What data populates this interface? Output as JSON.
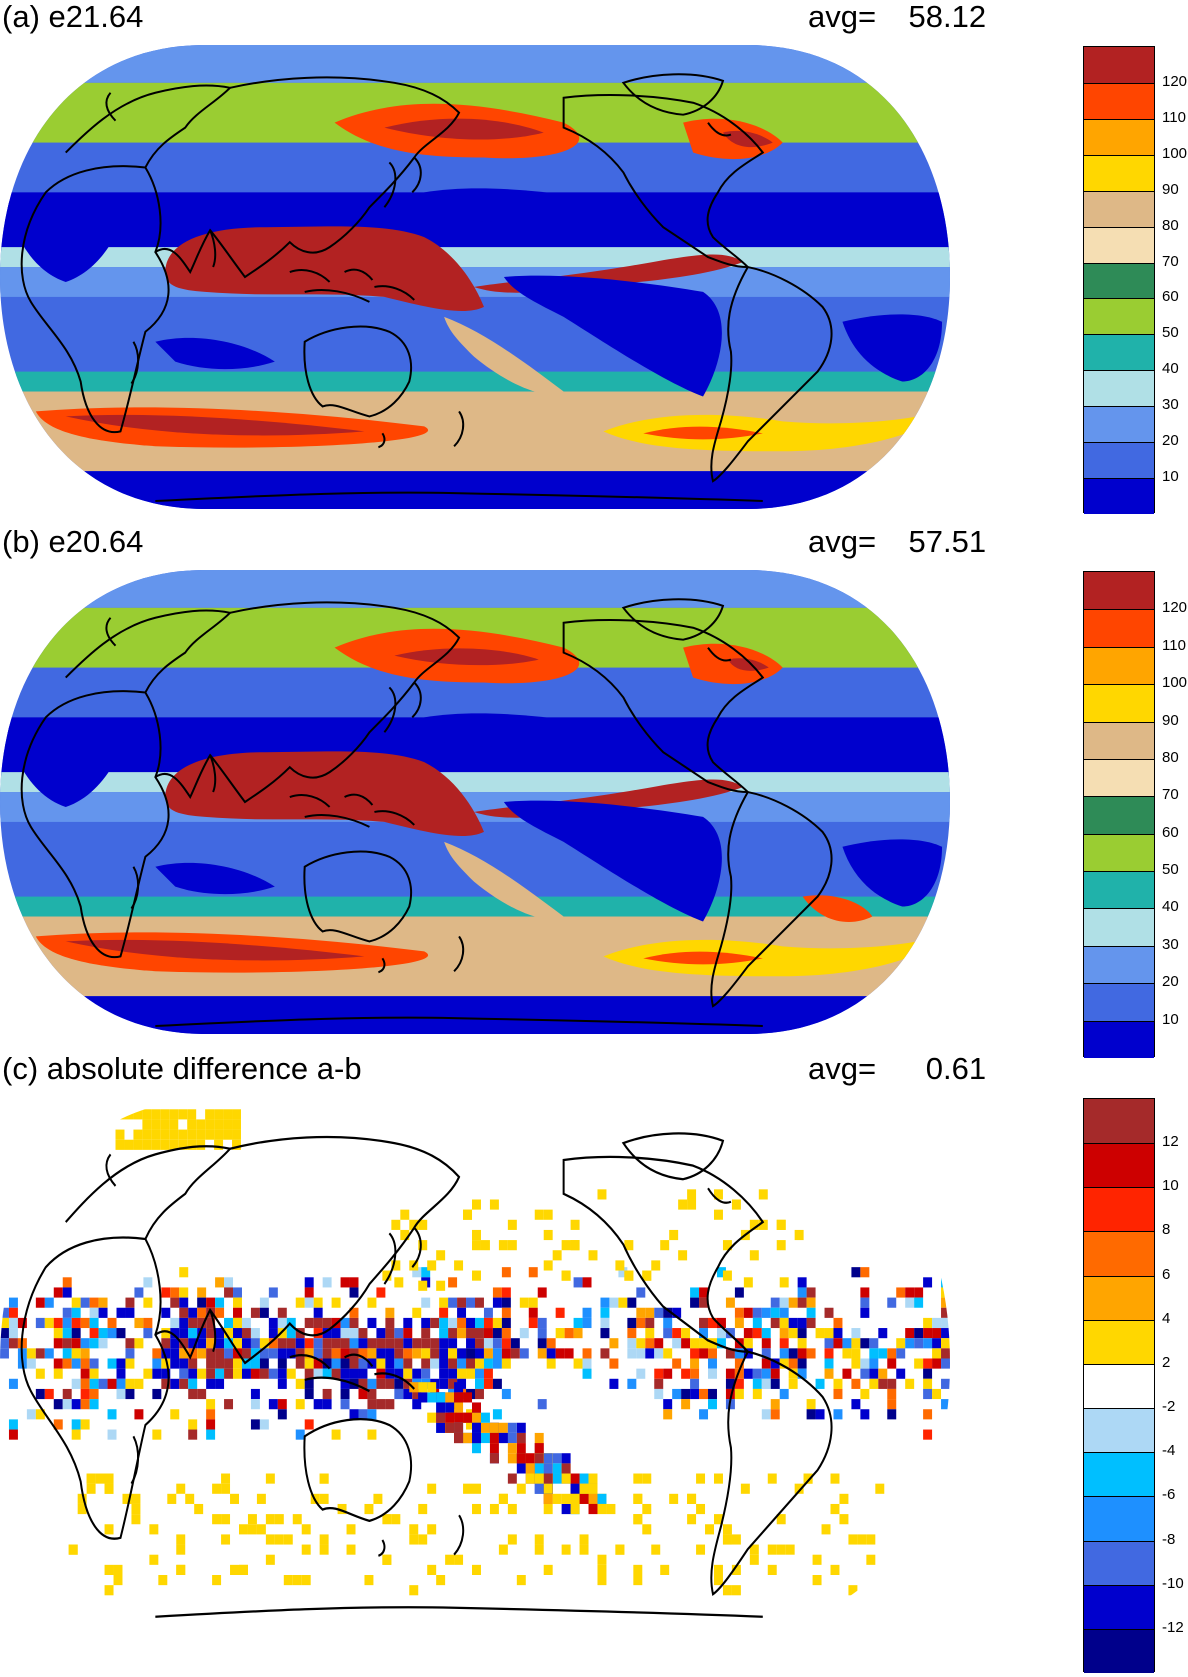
{
  "panels": [
    {
      "title": "(a) e21.64",
      "avg_label": "avg=",
      "avg_value": "58.12",
      "colorbar": {
        "labels": [
          "120",
          "110",
          "100",
          "90",
          "80",
          "70",
          "60",
          "50",
          "40",
          "30",
          "20",
          "10"
        ],
        "colors": [
          "#b22222",
          "#ff4500",
          "#ffa500",
          "#ffd700",
          "#deb887",
          "#f5deb3",
          "#2e8b57",
          "#9acd32",
          "#20b2aa",
          "#b0e0e6",
          "#6495ed",
          "#4169e1",
          "#0000cd"
        ]
      }
    },
    {
      "title": "(b) e20.64",
      "avg_label": "avg=",
      "avg_value": "57.51",
      "colorbar": {
        "labels": [
          "120",
          "110",
          "100",
          "90",
          "80",
          "70",
          "60",
          "50",
          "40",
          "30",
          "20",
          "10"
        ],
        "colors": [
          "#b22222",
          "#ff4500",
          "#ffa500",
          "#ffd700",
          "#deb887",
          "#f5deb3",
          "#2e8b57",
          "#9acd32",
          "#20b2aa",
          "#b0e0e6",
          "#6495ed",
          "#4169e1",
          "#0000cd"
        ]
      }
    },
    {
      "title": "(c) absolute difference a-b",
      "avg_label": "avg=",
      "avg_value": "0.61",
      "colorbar": {
        "labels": [
          "12",
          "10",
          "8",
          "6",
          "4",
          "2",
          "-2",
          "-4",
          "-6",
          "-8",
          "-10",
          "-12"
        ],
        "colors": [
          "#a52a2a",
          "#cd0000",
          "#ff2400",
          "#ff6a00",
          "#ffa500",
          "#ffd700",
          "#ffffff",
          "#add8f5",
          "#00bfff",
          "#1e90ff",
          "#4169e1",
          "#0000cd",
          "#00008b"
        ]
      }
    }
  ]
}
